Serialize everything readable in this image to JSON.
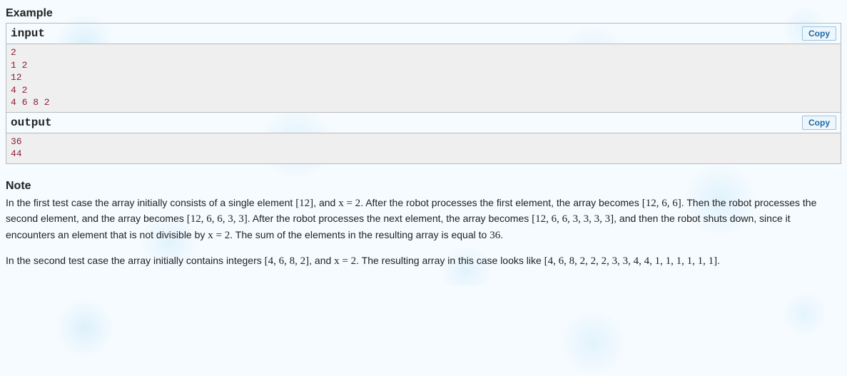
{
  "example": {
    "title": "Example",
    "input_label": "input",
    "output_label": "output",
    "copy_label": "Copy",
    "input_text": "2\n1 2\n12\n4 2\n4 6 8 2",
    "output_text": "36\n44"
  },
  "note": {
    "title": "Note",
    "para1_a": "In the first test case the array initially consists of a single element ",
    "para1_m1": "[12]",
    "para1_b": ", and ",
    "para1_m2": "x = 2",
    "para1_c": ". After the robot processes the first element, the array becomes ",
    "para1_m3": "[12, 6, 6]",
    "para1_d": ". Then the robot processes the second element, and the array becomes ",
    "para1_m4": "[12, 6, 6, 3, 3]",
    "para1_e": ". After the robot processes the next element, the array becomes ",
    "para1_m5": "[12, 6, 6, 3, 3, 3, 3]",
    "para1_f": ", and then the robot shuts down, since it encounters an element that is not divisible by ",
    "para1_m6": "x = 2",
    "para1_g": ". The sum of the elements in the resulting array is equal to ",
    "para1_m7": "36",
    "para1_h": ".",
    "para2_a": "In the second test case the array initially contains integers ",
    "para2_m1": "[4, 6, 8, 2]",
    "para2_b": ", and ",
    "para2_m2": "x = 2",
    "para2_c": ". The resulting array in this case looks like ",
    "para2_m3": "[4, 6, 8, 2, 2, 2, 3, 3, 4, 4, 1, 1, 1, 1, 1, 1]",
    "para2_d": "."
  },
  "colors": {
    "code_text": "#8a1f3a",
    "code_bg": "#efefef",
    "border": "#bbbbbb",
    "copy_text": "#1a6aa8",
    "copy_border": "#9cc4df",
    "copy_bg": "#eef6fb",
    "body_bg": "#f5fbff"
  }
}
